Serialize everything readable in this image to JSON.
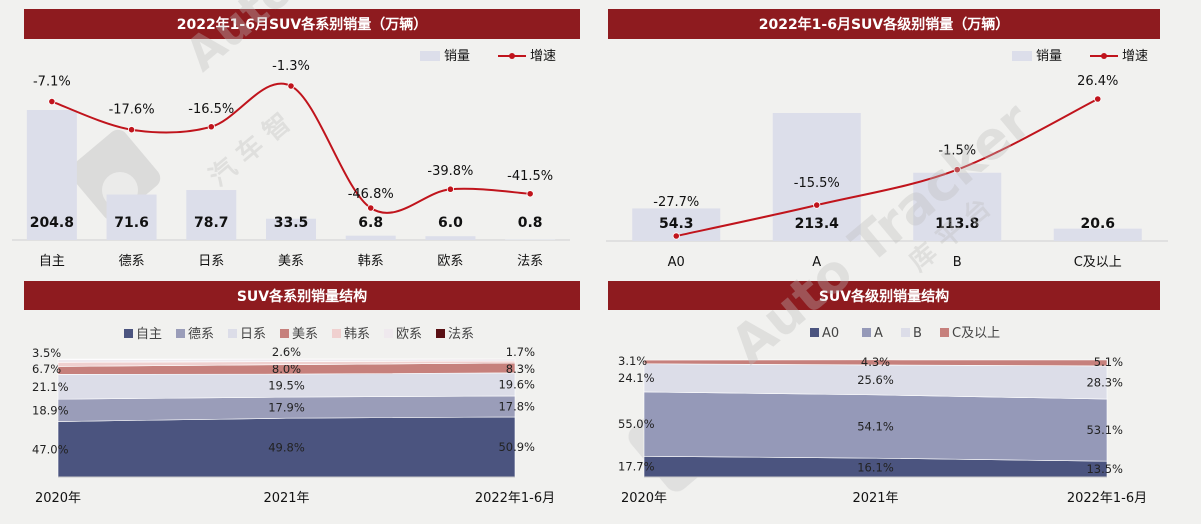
{
  "titles": {
    "tl": "2022年1-6月SUV各系别销量（万辆）",
    "tr": "2022年1-6月SUV各级别销量（万辆）",
    "bl": "SUV各系别销量结构",
    "br": "SUV各级别销量结构"
  },
  "legend_top": {
    "bar": "销量",
    "line": "增速"
  },
  "watermark": {
    "brand": "Auto Tracker",
    "cn1": "汽  车  智",
    "cn2": "库  平  台"
  },
  "colors": {
    "title_bg": "#8e1b1f",
    "bar": "#dcdeea",
    "line": "#c0141c",
    "area": [
      "#4b547f",
      "#9a9db9",
      "#dcdde8",
      "#c6807c",
      "#f0d0cf",
      "#efe9ee",
      "#5a1014"
    ],
    "area_r": [
      "#4b547f",
      "#9599b8",
      "#dcdde8",
      "#c6807c"
    ]
  },
  "chart_data": [
    {
      "id": "tl",
      "type": "bar",
      "title": "2022年1-6月SUV各系别销量（万辆）",
      "categories": [
        "自主",
        "德系",
        "日系",
        "美系",
        "韩系",
        "欧系",
        "法系"
      ],
      "series": [
        {
          "name": "销量",
          "type": "bar",
          "values": [
            204.8,
            71.6,
            78.7,
            33.5,
            6.8,
            6.0,
            0.8
          ]
        },
        {
          "name": "增速",
          "type": "line",
          "values": [
            -7.1,
            -17.6,
            -16.5,
            -1.3,
            -46.8,
            -39.8,
            -41.5
          ],
          "labels": [
            "-7.1%",
            "-17.6%",
            "-16.5%",
            "-1.3%",
            "-46.8%",
            "-39.8%",
            "-41.5%"
          ]
        }
      ],
      "bar_labels": [
        "204.8",
        "71.6",
        "78.7",
        "33.5",
        "6.8",
        "6.0",
        "0.8"
      ],
      "legend": "top-right"
    },
    {
      "id": "tr",
      "type": "bar",
      "title": "2022年1-6月SUV各级别销量（万辆）",
      "categories": [
        "A0",
        "A",
        "B",
        "C及以上"
      ],
      "series": [
        {
          "name": "销量",
          "type": "bar",
          "values": [
            54.3,
            213.4,
            113.8,
            20.6
          ]
        },
        {
          "name": "增速",
          "type": "line",
          "values": [
            -27.7,
            -15.5,
            -1.5,
            26.4
          ],
          "labels": [
            "-27.7%",
            "-15.5%",
            "-1.5%",
            "26.4%"
          ]
        }
      ],
      "bar_labels": [
        "54.3",
        "213.4",
        "113.8",
        "20.6"
      ],
      "legend": "top-right"
    },
    {
      "id": "bl",
      "type": "area",
      "stacked": "percent",
      "title": "SUV各系别销量结构",
      "x": [
        "2020年",
        "2021年",
        "2022年1-6月"
      ],
      "series": [
        {
          "name": "自主",
          "values": [
            47.0,
            49.8,
            50.9
          ],
          "labels": [
            "47.0%",
            "49.8%",
            "50.9%"
          ]
        },
        {
          "name": "德系",
          "values": [
            18.9,
            17.9,
            17.8
          ],
          "labels": [
            "18.9%",
            "17.9%",
            "17.8%"
          ]
        },
        {
          "name": "日系",
          "values": [
            21.1,
            19.5,
            19.6
          ],
          "labels": [
            "21.1%",
            "19.5%",
            "19.6%"
          ]
        },
        {
          "name": "美系",
          "values": [
            6.7,
            8.0,
            8.3
          ],
          "labels": [
            "6.7%",
            "8.0%",
            "8.3%"
          ]
        },
        {
          "name": "韩系",
          "values": [
            3.5,
            2.6,
            1.7
          ],
          "labels": [
            "3.5%",
            "2.6%",
            "1.7%"
          ]
        },
        {
          "name": "欧系",
          "values": [
            2.4,
            2.0,
            1.6
          ],
          "labels": [
            "",
            "",
            ""
          ]
        },
        {
          "name": "法系",
          "values": [
            0.4,
            0.2,
            0.1
          ],
          "labels": [
            "",
            "",
            ""
          ]
        }
      ],
      "legend": "top"
    },
    {
      "id": "br",
      "type": "area",
      "stacked": "percent",
      "title": "SUV各级别销量结构",
      "x": [
        "2020年",
        "2021年",
        "2022年1-6月"
      ],
      "series": [
        {
          "name": "A0",
          "values": [
            17.7,
            16.1,
            13.5
          ],
          "labels": [
            "17.7%",
            "16.1%",
            "13.5%"
          ]
        },
        {
          "name": "A",
          "values": [
            55.0,
            54.1,
            53.1
          ],
          "labels": [
            "55.0%",
            "54.1%",
            "53.1%"
          ]
        },
        {
          "name": "B",
          "values": [
            24.1,
            25.6,
            28.3
          ],
          "labels": [
            "24.1%",
            "25.6%",
            "28.3%"
          ]
        },
        {
          "name": "C及以上",
          "values": [
            3.1,
            4.3,
            5.1
          ],
          "labels": [
            "3.1%",
            "4.3%",
            "5.1%"
          ]
        }
      ],
      "legend": "top"
    }
  ]
}
